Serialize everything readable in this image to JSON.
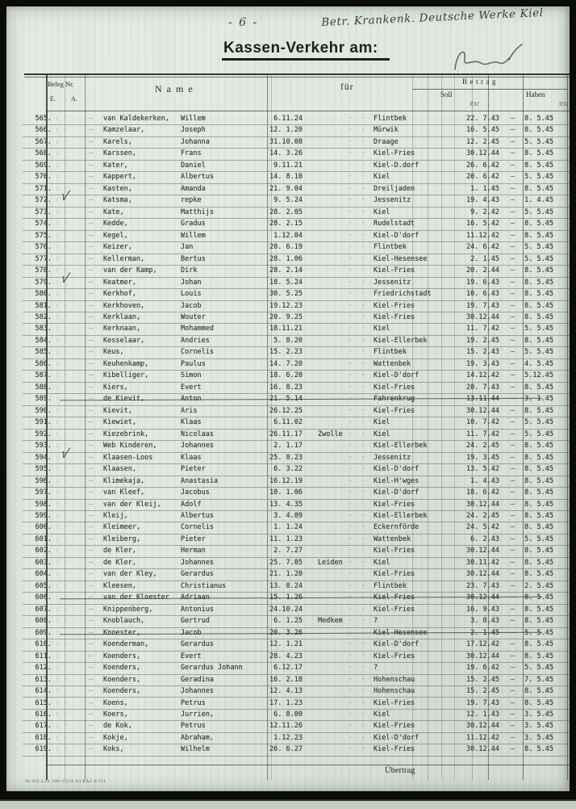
{
  "page": {
    "page_number": "- 6 -",
    "handwritten_note": "Betr. Krankenk. Deutsche Werke Kiel",
    "title": "Kassen-Verkehr am:",
    "carry_label": "Übertrag",
    "print_code": "Nr 952 2-41 100×55/56 A3 RAZ E/121"
  },
  "table": {
    "headers": {
      "beleg": "Beleg Nr.",
      "e": "E.",
      "a": "A.",
      "name": "Name",
      "fuer": "für",
      "betrag": "Betrag",
      "soll": "Soll",
      "haben": "Haben",
      "currency": "ℛℳ"
    },
    "artifacts": {
      "ditto": "·  ·",
      "e_mark": ": ·",
      "name_dash": "–",
      "range_dash": "–",
      "check_glyph": "√"
    },
    "rows": [
      {
        "n": "565.",
        "sn": "van Kaldekerken,",
        "fn": "Willem",
        "b": " 6.11.24",
        "pl": "",
        "loc": "Flintbek",
        "s": "22. 7.43",
        "h": " 8. 5.45"
      },
      {
        "n": "566.",
        "sn": "Kamzelaar,",
        "fn": "Joseph",
        "b": "12. 1.20",
        "pl": "",
        "loc": "Mürwik",
        "s": "16. 5.45",
        "h": " 8. 5.45"
      },
      {
        "n": "567.",
        "sn": "Karels,",
        "fn": "Johanna",
        "b": "31.10.08",
        "pl": "",
        "loc": "Draage",
        "s": "12. 2.45",
        "h": " 5. 5.45"
      },
      {
        "n": "568.",
        "sn": "Karssen,",
        "fn": "Frans",
        "b": "14. 3.26",
        "pl": "",
        "loc": "Kiel-Fries",
        "s": "30.12.44",
        "h": " 8. 5.45"
      },
      {
        "n": "569.",
        "sn": "Kater,",
        "fn": "Daniel",
        "b": " 9.11.21",
        "pl": "",
        "loc": "Kiel-D.dorf",
        "s": "26. 6.42",
        "h": " 8. 5.45"
      },
      {
        "n": "570.",
        "sn": "Kappert,",
        "fn": "Albertus",
        "b": "14. 8.10",
        "pl": "",
        "loc": "Kiel",
        "s": "20. 6.42",
        "h": " 5. 5.45"
      },
      {
        "n": "571.",
        "sn": "Kasten,",
        "fn": "Amanda",
        "b": "21. 9.04",
        "pl": "",
        "loc": "Dreiljaden",
        "s": " 1. 1.45",
        "h": " 8. 5.45"
      },
      {
        "n": "572.",
        "sn": "Katsma,",
        "fn": "repke",
        "b": " 9. 5.24",
        "pl": "",
        "loc": "Jessenitz",
        "s": "19. 4.43",
        "h": " 1. 4.45",
        "chk": true
      },
      {
        "n": "573.",
        "sn": "Kate,",
        "fn": "Matthijs",
        "b": "28. 2.05",
        "pl": "",
        "loc": "Kiel",
        "s": " 9. 2.42",
        "h": " 5. 5.45"
      },
      {
        "n": "574.",
        "sn": "Kedde,",
        "fn": "Gradus",
        "b": "28. 2.15",
        "pl": "",
        "loc": "Rudelstadt",
        "s": "16. 5.42",
        "h": " 8. 5.45"
      },
      {
        "n": "575.",
        "sn": "Kegel,",
        "fn": "Willem",
        "b": " 1.12.04",
        "pl": "",
        "loc": "Kiel-D'dorf",
        "s": "11.12.42",
        "h": " 8. 5.45"
      },
      {
        "n": "576.",
        "sn": "Keizer,",
        "fn": "Jan",
        "b": "20. 6.19",
        "pl": "",
        "loc": "Flintbek",
        "s": "24. 6.42",
        "h": " 5. 5.45"
      },
      {
        "n": "577.",
        "sn": "Kellerman,",
        "fn": "Bertus",
        "b": "28. 1.06",
        "pl": "",
        "loc": "Kiel-Hesensee",
        "s": " 2. 1.45",
        "h": " 5. 5.45"
      },
      {
        "n": "578.",
        "sn": "van der Kamp,",
        "fn": "Dirk",
        "b": "28. 2.14",
        "pl": "",
        "loc": "Kiel-Fries",
        "s": "20. 2.44",
        "h": " 8. 5.45"
      },
      {
        "n": "579.",
        "sn": "Keatmer,",
        "fn": "Johan",
        "b": "18. 5.24",
        "pl": "",
        "loc": "Jessenitz",
        "s": "19. 6.43",
        "h": " 8. 5.45",
        "chk": true
      },
      {
        "n": "580.",
        "sn": "Kerkhof,",
        "fn": "Louis",
        "b": "30. 5.25",
        "pl": "",
        "loc": "Friedrichstadt",
        "s": "10. 6.43",
        "h": " 8. 5.45"
      },
      {
        "n": "581.",
        "sn": "Kerkhoven,",
        "fn": "Jacob",
        "b": "19.12.23",
        "pl": "",
        "loc": "Kiel-Fries",
        "s": "19. 7.43",
        "h": " 8. 5.45"
      },
      {
        "n": "582.",
        "sn": "Kerklaan,",
        "fn": "Wouter",
        "b": "20. 9.25",
        "pl": "",
        "loc": "Kiel-Fries",
        "s": "30.12.44",
        "h": " 8. 5.45"
      },
      {
        "n": "583.",
        "sn": "Kerknaan,",
        "fn": "Mohammed",
        "b": "18.11.21",
        "pl": "",
        "loc": "Kiel",
        "s": "11. 7.42",
        "h": " 5. 5.45"
      },
      {
        "n": "584.",
        "sn": "Kesselaar,",
        "fn": "Andries",
        "b": " 5. 8.20",
        "pl": "",
        "loc": "Kiel-Ellerbek",
        "s": "19. 2.45",
        "h": " 8. 5.45"
      },
      {
        "n": "585.",
        "sn": "Keus,",
        "fn": "Cornelis",
        "b": "15. 2.23",
        "pl": "",
        "loc": "Flintbek",
        "s": "15. 2.43",
        "h": " 5. 5.45"
      },
      {
        "n": "586.",
        "sn": "Keuhenkamp,",
        "fn": "Paulus",
        "b": "14. 7.20",
        "pl": "",
        "loc": "Wattenbek",
        "s": "19. 3.43",
        "h": " 4. 5.45"
      },
      {
        "n": "587.",
        "sn": "Kibelliger,",
        "fn": "Simon",
        "b": "18. 6.20",
        "pl": "",
        "loc": "Kiel-D'dorf",
        "s": "14.12.42",
        "h": " 5.12.45"
      },
      {
        "n": "588.",
        "sn": "Kiers,",
        "fn": "Evert",
        "b": "16. 8.23",
        "pl": "",
        "loc": "Kiel-Fries",
        "s": "20. 7.43",
        "h": " 8. 5.45"
      },
      {
        "n": "589.",
        "sn": "de Kievit,",
        "fn": "Anton",
        "b": "21. 5.14",
        "pl": "",
        "loc": "Fahrenkrug",
        "s": "13.11.44",
        "h": " 3. 1.45",
        "x": true
      },
      {
        "n": "590.",
        "sn": "Kievit,",
        "fn": "Aris",
        "b": "26.12.25",
        "pl": "",
        "loc": "Kiel-Fries",
        "s": "30.12.44",
        "h": " 8. 5.45"
      },
      {
        "n": "591.",
        "sn": "Kiewiet,",
        "fn": "Klaas",
        "b": " 6.11.02",
        "pl": "",
        "loc": "Kiel",
        "s": "10. 7.42",
        "h": " 5. 5.45"
      },
      {
        "n": "592.",
        "sn": "Kiezebrink,",
        "fn": "Nicolaas",
        "b": "26.11.17",
        "pl": "Zwolle",
        "loc": "Kiel",
        "s": "11. 7.42",
        "h": " 5. 5.45"
      },
      {
        "n": "593.",
        "sn": "Web Kinderen,",
        "fn": "Johannes",
        "b": " 2. 1.17",
        "pl": "",
        "loc": "Kiel-Ellerbek",
        "s": "24. 2.45",
        "h": " 8. 5.45"
      },
      {
        "n": "594.",
        "sn": "Klaasen-Loos",
        "fn": "Klaas",
        "b": "25. 8.23",
        "pl": "",
        "loc": "Jessenitz",
        "s": "19. 3.45",
        "h": " 8. 5.45",
        "chk": true
      },
      {
        "n": "595.",
        "sn": "Klaasen,",
        "fn": "Pieter",
        "b": " 6. 3.22",
        "pl": "",
        "loc": "Kiel-D'dorf",
        "s": "13. 5.42",
        "h": " 8. 5.45"
      },
      {
        "n": "596.",
        "sn": "Klimekaja,",
        "fn": "Anastasia",
        "b": "16.12.19",
        "pl": "",
        "loc": "Kiel-H'wges",
        "s": " 1. 4.43",
        "h": " 8. 5.45"
      },
      {
        "n": "597.",
        "sn": "van Kleef,",
        "fn": "Jacobus",
        "b": "10. 1.06",
        "pl": "",
        "loc": "Kiel-D'dorf",
        "s": "18. 6.42",
        "h": " 8. 5.45"
      },
      {
        "n": "598.",
        "sn": "van der Kleij,",
        "fn": "Adolf",
        "b": "13. 4.35",
        "pl": "",
        "loc": "Kiel-Fries",
        "s": "30.12.44",
        "h": " 8. 5.45"
      },
      {
        "n": "599.",
        "sn": "Kleij,",
        "fn": "Albertus",
        "b": " 3. 4.09",
        "pl": "",
        "loc": "Kiel-Ellerbek",
        "s": "24. 2.45",
        "h": " 8. 5.45"
      },
      {
        "n": "600.",
        "sn": "Kleimeer,",
        "fn": "Cornelis",
        "b": " 1. 1.24",
        "pl": "",
        "loc": "Eckernförde",
        "s": "24. 5.42",
        "h": " 8. 5.45"
      },
      {
        "n": "601.",
        "sn": "Kleiberg,",
        "fn": "Pieter",
        "b": "11. 1.23",
        "pl": "",
        "loc": "Wattenbek",
        "s": " 6. 2.43",
        "h": " 5. 5.45"
      },
      {
        "n": "602.",
        "sn": "de Kler,",
        "fn": "Herman",
        "b": " 2. 7.27",
        "pl": "",
        "loc": "Kiel-Fries",
        "s": "30.12.44",
        "h": " 8. 5.45"
      },
      {
        "n": "603.",
        "sn": "de Kler,",
        "fn": "Johannes",
        "b": "25. 7.05",
        "pl": "Leiden",
        "loc": "Kiel",
        "s": "30.11.42",
        "h": " 8. 5.45"
      },
      {
        "n": "604.",
        "sn": "van der Kley,",
        "fn": "Gerardus",
        "b": "21. 1.20",
        "pl": "",
        "loc": "Kiel-Fries",
        "s": "30.12.44",
        "h": " 8. 5.45"
      },
      {
        "n": "605.",
        "sn": "Kleesen,",
        "fn": "Christianus",
        "b": "13. 8.24",
        "pl": "",
        "loc": "Flintbek",
        "s": "23. 7.43",
        "h": " 2. 5.45"
      },
      {
        "n": "606.",
        "sn": "van der Kloester",
        "fn": "Adriaan",
        "b": "15. 1.26",
        "pl": "",
        "loc": "Kiel-Fries",
        "s": "30.12.44",
        "h": " 8. 5.45",
        "x": true
      },
      {
        "n": "607.",
        "sn": "Knippenberg,",
        "fn": "Antonius",
        "b": "24.10.24",
        "pl": "",
        "loc": "Kiel-Fries",
        "s": "16. 9.43",
        "h": " 8. 5.45"
      },
      {
        "n": "608.",
        "sn": "Knoblauch,",
        "fn": "Gertrud",
        "b": " 6. 1.25",
        "pl": "Medkem",
        "loc": "?",
        "s": " 3. 8.43",
        "h": " 8. 5.45"
      },
      {
        "n": "609.",
        "sn": "Knoester,",
        "fn": "Jacob",
        "b": "20. 3.26",
        "pl": "",
        "loc": "Kiel-Hesensee",
        "s": " 2. 1.45",
        "h": " 5. 5.45",
        "x": true
      },
      {
        "n": "610.",
        "sn": "Koenderman,",
        "fn": "Gerardus",
        "b": "12. 1.21",
        "pl": "",
        "loc": "Kiel-D'dorf",
        "s": "17.12.42",
        "h": " 8. 5.45"
      },
      {
        "n": "611.",
        "sn": "Koenders,",
        "fn": "Evert",
        "b": "28. 4.23",
        "pl": "",
        "loc": "Kiel-Fries",
        "s": "30.12.44",
        "h": " 8. 5.45"
      },
      {
        "n": "612.",
        "sn": "Koenders,",
        "fn": "Gerardus Johann",
        "b": " 6.12.17",
        "pl": "",
        "loc": "?",
        "s": "19. 6.42",
        "h": " 5. 5.45"
      },
      {
        "n": "613.",
        "sn": "Koenders,",
        "fn": "Geradina",
        "b": "16. 2.18",
        "pl": "",
        "loc": "Hohenschau",
        "s": "15. 2.45",
        "h": " 7. 5.45"
      },
      {
        "n": "614.",
        "sn": "Koenders,",
        "fn": "Johannes",
        "b": "12. 4.13",
        "pl": "",
        "loc": "Hohenschau",
        "s": "15. 2.45",
        "h": " 8. 5.45"
      },
      {
        "n": "615.",
        "sn": "Koens,",
        "fn": "Petrus",
        "b": "17. 1.23",
        "pl": "",
        "loc": "Kiel-Fries",
        "s": "19. 7.43",
        "h": " 8. 5.45"
      },
      {
        "n": "616.",
        "sn": "Koers,",
        "fn": "Jurrien,",
        "b": " 6. 8.00",
        "pl": "",
        "loc": "Kiel",
        "s": "12. 1.43",
        "h": " 3. 5.45"
      },
      {
        "n": "617.",
        "sn": "de Kok,",
        "fn": "Petrus",
        "b": "12.11.26",
        "pl": "",
        "loc": "Kiel-Fries",
        "s": "30.12.44",
        "h": " 3. 5.45"
      },
      {
        "n": "618.",
        "sn": "Kokje,",
        "fn": "Abraham,",
        "b": " 1.12.23",
        "pl": "",
        "loc": "Kiel-D'dorf",
        "s": "11.12.42",
        "h": " 3. 5.45"
      },
      {
        "n": "619.",
        "sn": "Koks,",
        "fn": "Wilhelm",
        "b": "26. 6.27",
        "pl": "",
        "loc": "Kiel-Fries",
        "s": "30.12.44",
        "h": " 8. 5.45"
      }
    ]
  }
}
